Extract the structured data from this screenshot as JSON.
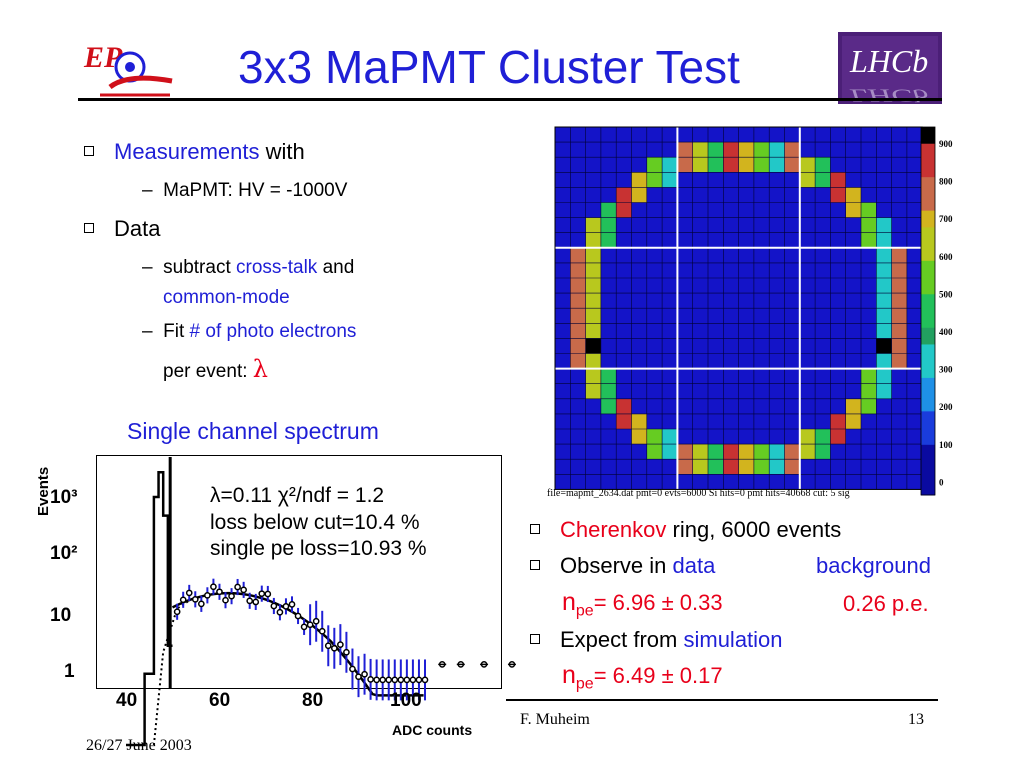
{
  "slide": {
    "title": "3x3 MaPMT Cluster Test",
    "logos": {
      "left_text": "EP",
      "right_text": "LHCb"
    }
  },
  "left": {
    "b1_a": "Measurements",
    "b1_b": " with",
    "b1_sub": "MaPMT: HV = -1000V",
    "b2": "Data",
    "b2_sub1_a": "subtract ",
    "b2_sub1_b": "cross-talk",
    "b2_sub1_c": " and",
    "b2_sub1_d": "common-mode",
    "b2_sub2_a": "Fit ",
    "b2_sub2_b": "# of photo electrons",
    "b2_sub2_c": "per event: ",
    "lambda": "λ",
    "dash": "–",
    "caption": "Single channel spectrum"
  },
  "spectrum": {
    "ylabel": "Events",
    "yticks": [
      "10³",
      "10²",
      "10",
      "1"
    ],
    "xticks": [
      "40",
      "60",
      "80",
      "100"
    ],
    "xlabel": "ADC counts",
    "fit_line1": "λ=0.11    χ²/ndf  = 1.2",
    "fit_line2": "loss below cut=10.4 %",
    "fit_line3": "single pe loss=10.93 %",
    "colors": {
      "data": "#000000",
      "error_bars": "#1f1fd6"
    }
  },
  "heatmap": {
    "file_line": "file=mapmt_2634.dat  pmt=0  evts=6000  Si hits=0 pmt hits=40668  cut: 5 sig",
    "scale_labels": [
      "900",
      "800",
      "700",
      "600",
      "500",
      "400",
      "300",
      "200",
      "100",
      "0"
    ],
    "colors": {
      "background": "#1414c8",
      "grid": "#ffffff"
    }
  },
  "right": {
    "r1_a": "Cherenkov",
    "r1_b": " ring,  6000 events",
    "r2_a": "Observe in ",
    "r2_b": "data",
    "r2_c": "background",
    "r2_line2": "= 6.96 ± 0.33",
    "r2_bg": "0.26 p.e.",
    "n": "n",
    "pe": "pe",
    "r3_a": "Expect from ",
    "r3_b": "simulation",
    "r3_line2": "= 6.49 ± 0.17"
  },
  "footer": {
    "author": "F. Muheim",
    "page": "13",
    "date": "26/27 June 2003"
  }
}
